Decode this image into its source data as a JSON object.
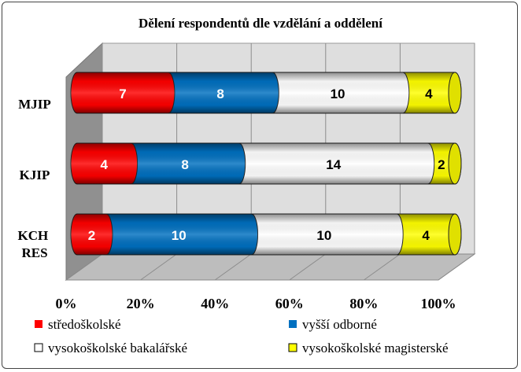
{
  "chart_data": {
    "type": "bar",
    "orientation": "horizontal",
    "stacked": "percent",
    "style": "3d-cylinder",
    "title": "Dělení respondentů dle vzdělání a oddělení",
    "categories": [
      "MJIP",
      "KJIP",
      "KCH RES"
    ],
    "series": [
      {
        "name": "středoškolské",
        "color": "#ff0000",
        "label_color": "#ffffff",
        "values": [
          7,
          4,
          2
        ]
      },
      {
        "name": "vyšší odborné",
        "color": "#0070c0",
        "label_color": "#ffffff",
        "values": [
          8,
          8,
          10
        ]
      },
      {
        "name": "vysokoškolské bakalářské",
        "color": "#ffffff",
        "label_color": "#000000",
        "values": [
          10,
          14,
          10
        ]
      },
      {
        "name": "vysokoškolské magisterské",
        "color": "#ffff00",
        "label_color": "#000000",
        "values": [
          4,
          2,
          4
        ]
      }
    ],
    "x_ticks": [
      "0%",
      "20%",
      "40%",
      "60%",
      "80%",
      "100%"
    ],
    "xlim": [
      0,
      100
    ],
    "grid": true,
    "legend_position": "bottom"
  }
}
